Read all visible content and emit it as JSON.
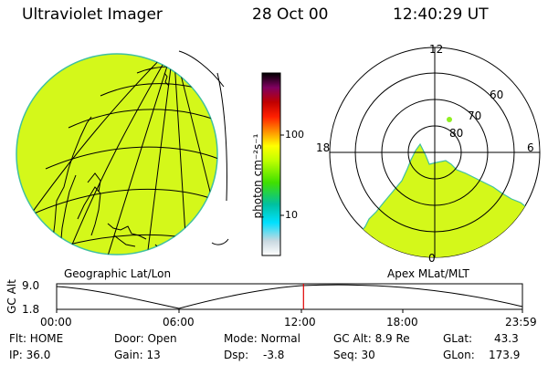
{
  "header": {
    "instrument": "Ultraviolet Imager",
    "date": "28 Oct 00",
    "time": "12:40:29 UT"
  },
  "colorbar": {
    "label": "photon cm⁻²s⁻¹",
    "ticks": [
      "100",
      "10"
    ],
    "scale": "log",
    "stops": [
      "#ffffff",
      "#c8c8c8",
      "#00e0ff",
      "#00c080",
      "#00ff00",
      "#c0ff00",
      "#ffff00",
      "#ff8000",
      "#ff0000",
      "#c00000",
      "#800080",
      "#000000"
    ]
  },
  "left_panel": {
    "caption": "Geographic Lat/Lon",
    "fill_color": "#d4f81a"
  },
  "right_panel": {
    "caption": "Apex MLat/MLT",
    "mlt_labels": {
      "top": "12",
      "left": "18",
      "right": "6",
      "bottom": "0"
    },
    "lat_labels": [
      "60",
      "70",
      "80"
    ],
    "fill_color": "#d4f81a"
  },
  "orbit": {
    "axis_label": "GC Alt",
    "y_ticks": [
      "9.0",
      "1.8"
    ],
    "x_ticks": [
      "00:00",
      "06:00",
      "12:00",
      "18:00",
      "23:59"
    ],
    "current_time_fraction": 0.53
  },
  "info": {
    "row1": {
      "flt": "Flt: HOME",
      "door": "Door: Open",
      "mode": "Mode: Normal",
      "gc_alt": "GC Alt: 8.9 Re",
      "glat_label": "GLat:",
      "glat_value": "43.3"
    },
    "row2": {
      "ip": "IP: 36.0",
      "gain": "Gain: 13",
      "dsp_label": "Dsp:",
      "dsp_value": "-3.8",
      "seq": "Seq: 30",
      "glon_label": "GLon:",
      "glon_value": "173.9"
    }
  }
}
